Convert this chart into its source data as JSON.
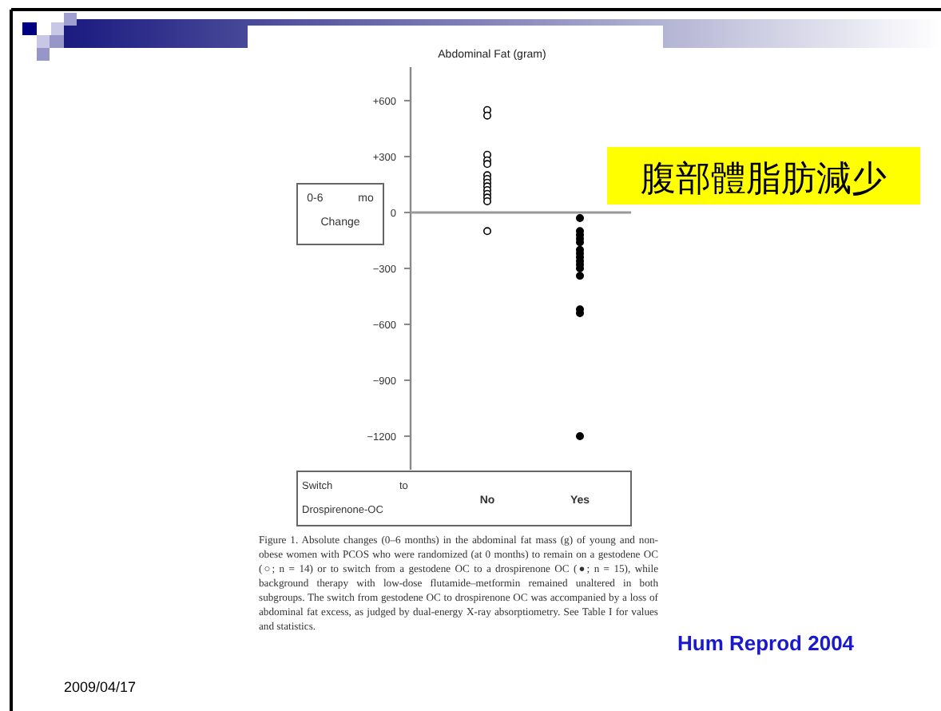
{
  "chart_data": {
    "type": "scatter",
    "title": "Abdominal Fat (gram)",
    "ylabel": "0-6 mo Change",
    "xlabel": "Switch to Drospirenone-OC",
    "categories": [
      "No",
      "Yes"
    ],
    "series": [
      {
        "color": "#ffffff",
        "x": [
          "No",
          "No",
          "No",
          "No",
          "No",
          "No",
          "No",
          "No",
          "No",
          "No",
          "No",
          "No",
          "No",
          "No"
        ],
        "values": [
          550,
          520,
          310,
          280,
          260,
          200,
          180,
          160,
          140,
          120,
          100,
          80,
          60,
          -100
        ]
      },
      {
        "color": "#000000",
        "x": [
          "Yes",
          "Yes",
          "Yes",
          "Yes",
          "Yes",
          "Yes",
          "Yes",
          "Yes",
          "Yes",
          "Yes",
          "Yes",
          "Yes",
          "Yes",
          "Yes",
          "Yes"
        ],
        "values": [
          -30,
          -100,
          -120,
          -140,
          -160,
          -200,
          -220,
          -240,
          -260,
          -280,
          -300,
          -340,
          -520,
          -540,
          -1200
        ]
      }
    ],
    "ylim": [
      -1380,
      780
    ],
    "yticks": [
      {
        "value": 600,
        "label": "+600"
      },
      {
        "value": 300,
        "label": "+300"
      },
      0,
      {
        "value": -300,
        "label": "−300"
      },
      {
        "value": -600,
        "label": "−600"
      },
      {
        "value": -900,
        "label": "−900"
      },
      {
        "value": -1200,
        "label": "−1200"
      }
    ],
    "ref_lines": [
      {
        "axis": "y",
        "value": 0
      }
    ],
    "marker": "circle",
    "grid": false,
    "annotations": [
      "腹部體脂肪減少",
      "Figure 1. Absolute changes (0–6 months) in the abdominal fat mass (g) of young and non-obese women with PCOS who were randomized (at 0 months) to remain on a gestodene OC (○; n = 14) or to switch from a gestodene OC to a drospirenone OC (●; n = 15), while background therapy with low-dose flutamide–metformin remained unaltered in both subgroups. The switch from gestodene OC to drospirenone OC was accompanied by a loss of abdominal fat excess, as judged by dual-energy X-ray absorptiometry. See Table I for values and statistics.",
      "Hum Reprod 2004",
      "2009/04/17"
    ]
  }
}
